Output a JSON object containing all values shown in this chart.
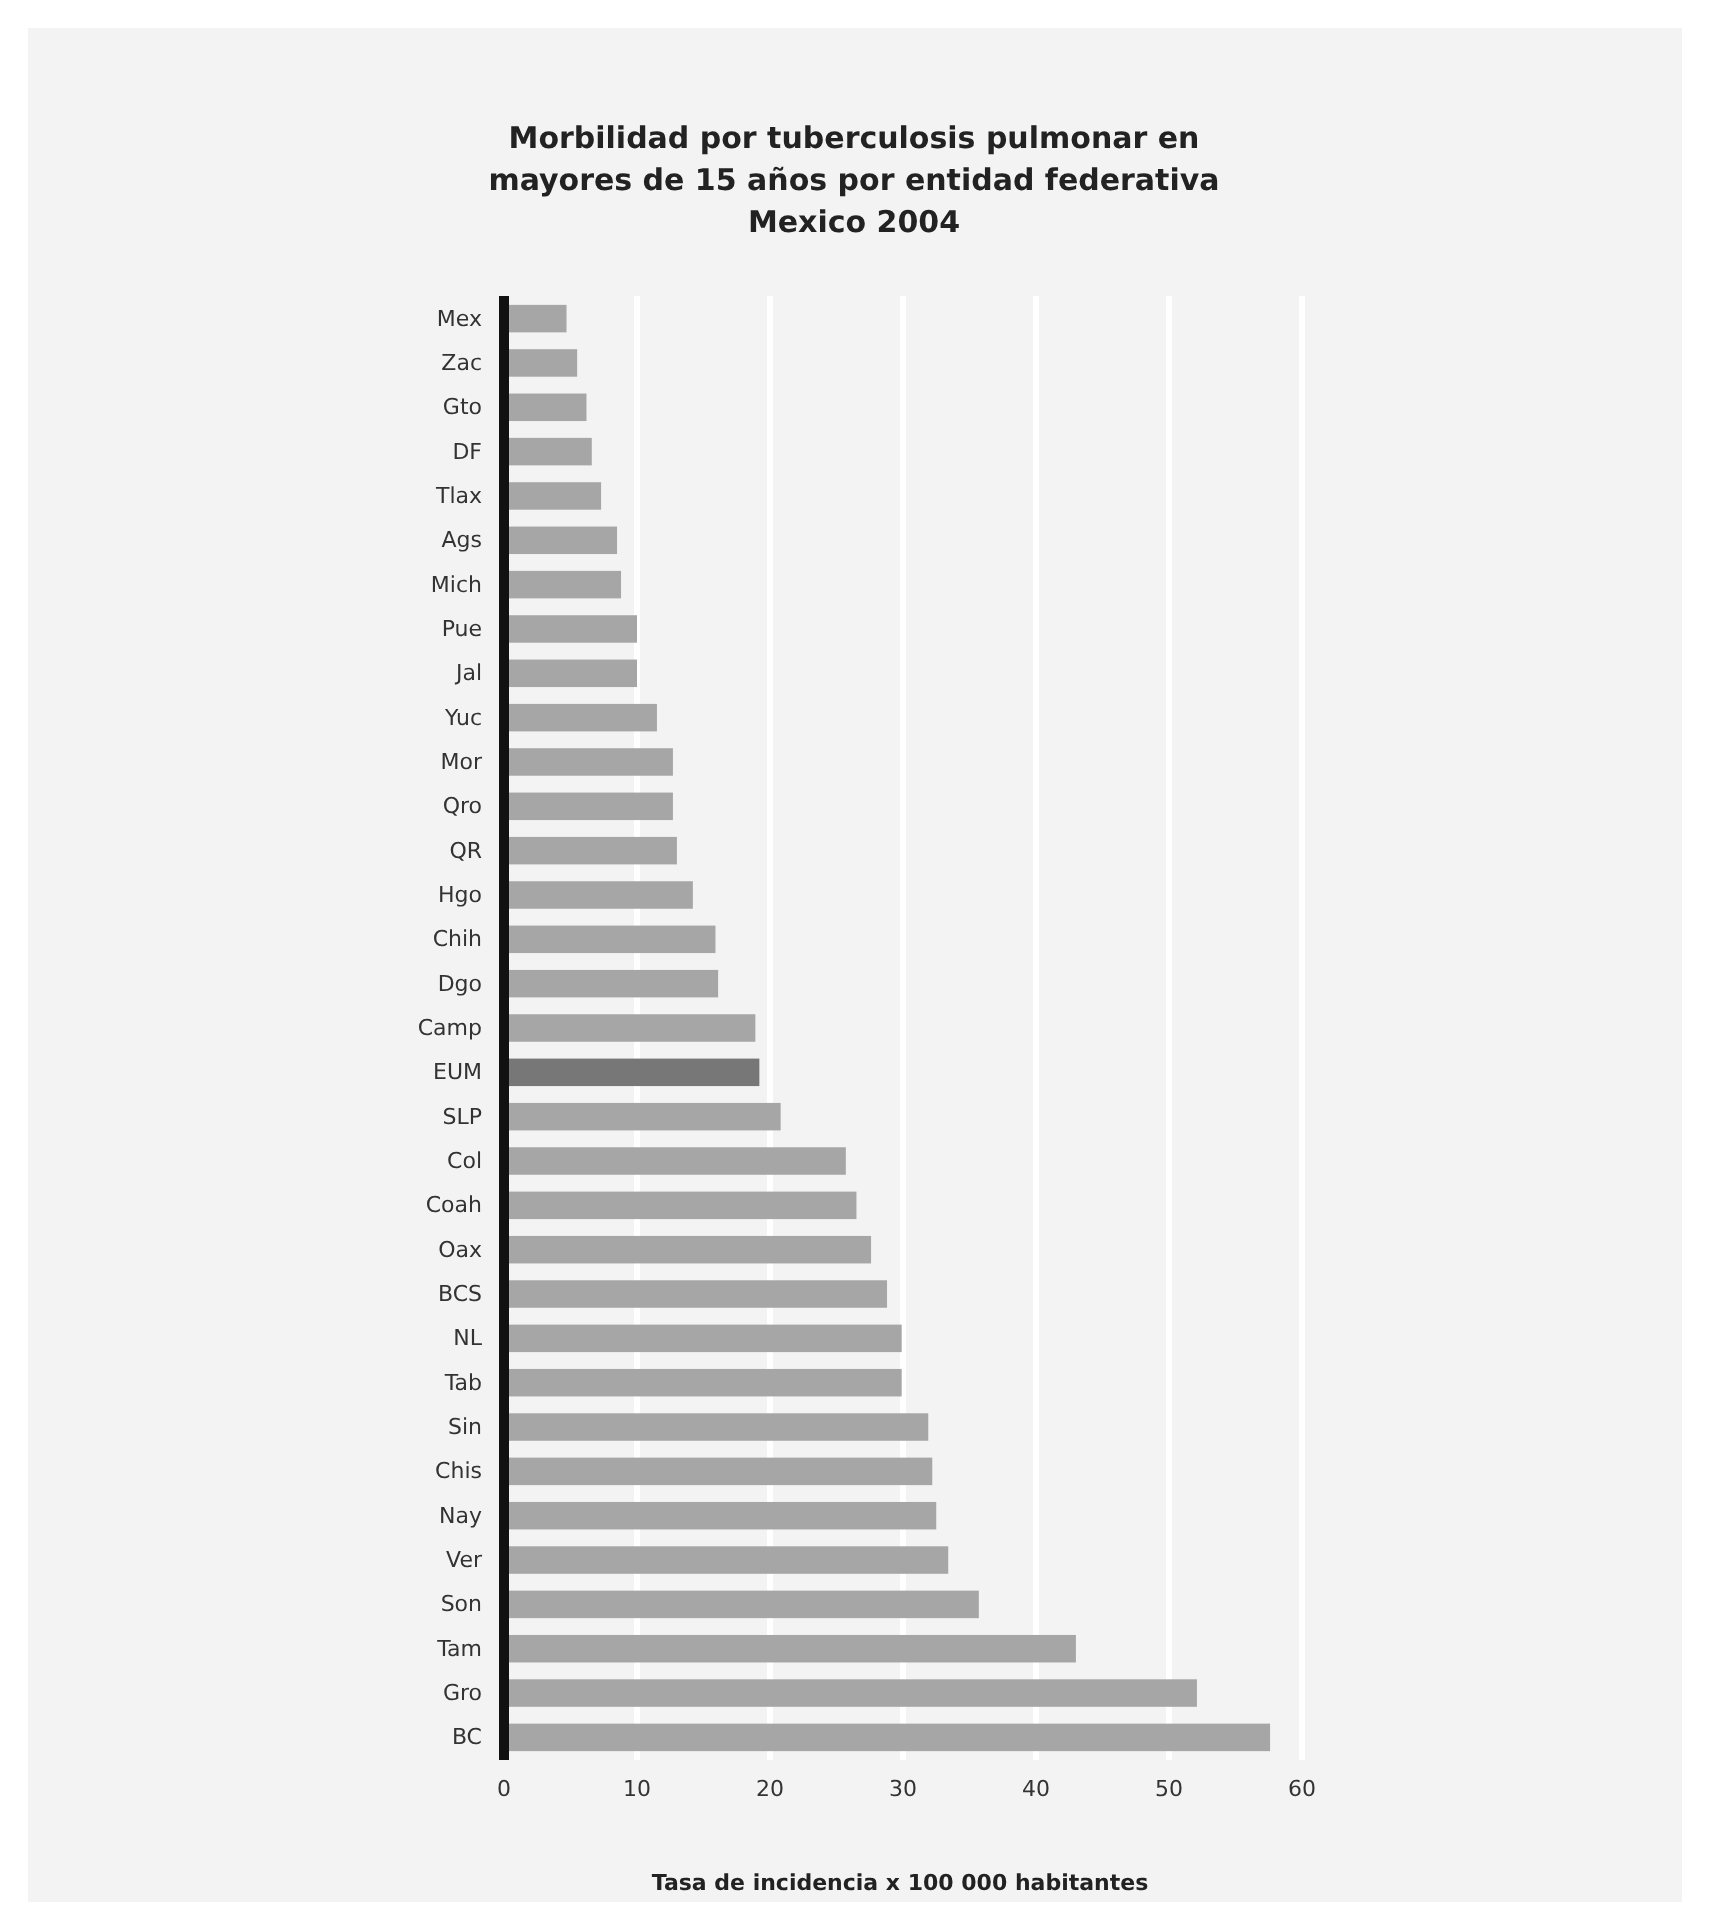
{
  "chart_data": {
    "type": "bar",
    "orientation": "horizontal",
    "title": "Morbilidad por tuberculosis pulmonar en\nmayores de 15 años por entidad federativa\nMexico 2004",
    "xlabel": "Tasa de incidencia x 100 000 habitantes",
    "categories": [
      "Mex",
      "Zac",
      "Gto",
      "DF",
      "Tlax",
      "Ags",
      "Mich",
      "Pue",
      "Jal",
      "Yuc",
      "Mor",
      "Qro",
      "QR",
      "Hgo",
      "Chih",
      "Dgo",
      "Camp",
      "EUM",
      "SLP",
      "Col",
      "Coah",
      "Oax",
      "BCS",
      "NL",
      "Tab",
      "Sin",
      "Chis",
      "Nay",
      "Ver",
      "Son",
      "Tam",
      "Gro",
      "BC"
    ],
    "values": [
      4.7,
      5.5,
      6.2,
      6.6,
      7.3,
      8.5,
      8.8,
      10.0,
      10.0,
      11.5,
      12.7,
      12.7,
      13.0,
      14.2,
      15.9,
      16.1,
      18.9,
      19.2,
      20.8,
      25.7,
      26.5,
      27.6,
      28.8,
      29.9,
      29.9,
      31.9,
      32.2,
      32.5,
      33.4,
      35.7,
      43.0,
      52.1,
      57.6
    ],
    "colors": [
      "#a6a6a6",
      "#a6a6a6",
      "#a6a6a6",
      "#a6a6a6",
      "#a6a6a6",
      "#a6a6a6",
      "#a6a6a6",
      "#a6a6a6",
      "#a6a6a6",
      "#a6a6a6",
      "#a6a6a6",
      "#a6a6a6",
      "#a6a6a6",
      "#a6a6a6",
      "#a6a6a6",
      "#a6a6a6",
      "#a6a6a6",
      "#777777",
      "#a6a6a6",
      "#a6a6a6",
      "#a6a6a6",
      "#a6a6a6",
      "#a6a6a6",
      "#a6a6a6",
      "#a6a6a6",
      "#a6a6a6",
      "#a6a6a6",
      "#a6a6a6",
      "#a6a6a6",
      "#a6a6a6",
      "#a6a6a6",
      "#a6a6a6",
      "#a6a6a6"
    ],
    "xlim": [
      0,
      60
    ],
    "xticks": [
      0,
      10,
      20,
      30,
      40,
      50,
      60
    ],
    "grid": "x"
  }
}
